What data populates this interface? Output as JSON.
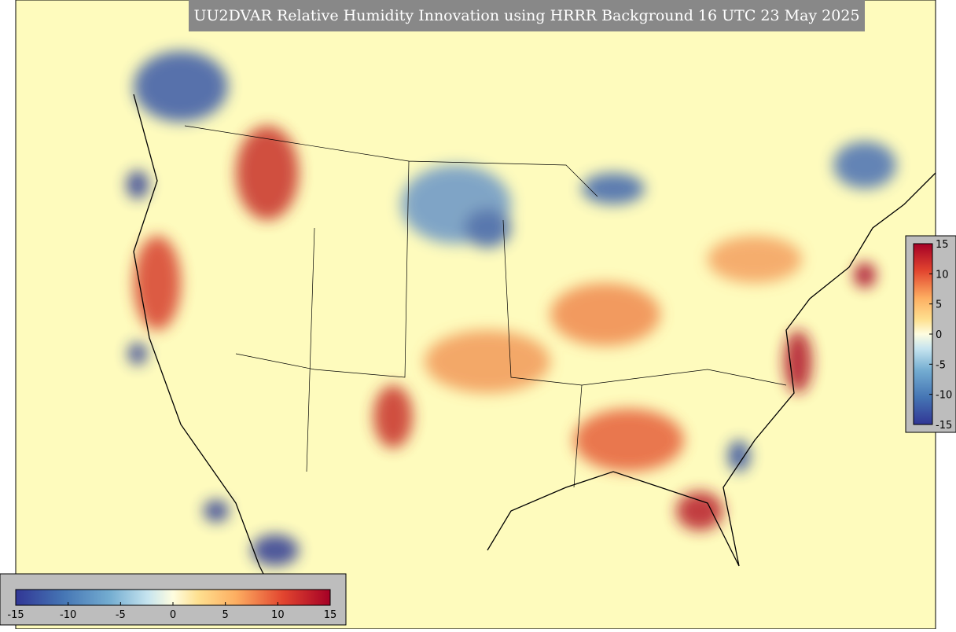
{
  "title": "UU2DVAR Relative Humidity Innovation using HRRR Background 16 UTC 23 May 2025",
  "colorbar": {
    "lim": [
      -15,
      15
    ],
    "ticks": [
      -15,
      -10,
      -5,
      0,
      5,
      10,
      15
    ]
  }
}
